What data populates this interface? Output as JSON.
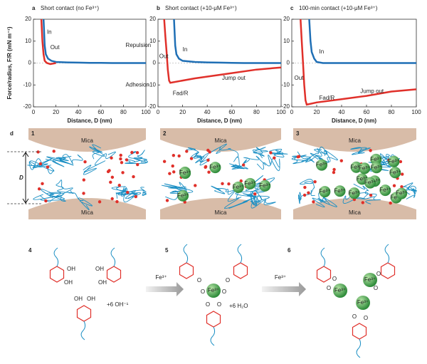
{
  "chart_data": [
    {
      "type": "line",
      "label": "a",
      "title": "Short contact (no Fe³⁺)",
      "x_label": "Distance, D (nm)",
      "y_label": "Force/radius, F/R (mN m⁻¹)",
      "xlim": [
        0,
        100
      ],
      "ylim": [
        -20,
        20
      ],
      "xticks": [
        0,
        20,
        40,
        60,
        80,
        100
      ],
      "yticks": [
        -20,
        -10,
        0,
        10,
        20
      ],
      "series": [
        {
          "name": "In",
          "color": "#1f6fb5",
          "x": [
            9,
            10,
            11,
            13,
            16,
            20,
            30,
            40,
            50,
            60,
            70,
            80,
            90,
            100
          ],
          "values": [
            20,
            8,
            4,
            2,
            1,
            0.5,
            0.3,
            0.2,
            0.1,
            0.1,
            0,
            0,
            0,
            0
          ]
        },
        {
          "name": "Out",
          "color": "#e0302a",
          "x": [
            7,
            8,
            9,
            10,
            12,
            15,
            20
          ],
          "values": [
            20,
            10,
            4,
            1,
            0,
            -0.5,
            0
          ]
        }
      ],
      "annotations": [
        {
          "text": "In",
          "color": "#1f6fb5"
        },
        {
          "text": "Out",
          "color": "#e0302a"
        },
        {
          "text": "Repulsion",
          "color": "#888888"
        },
        {
          "text": "Adhesion",
          "color": "#888888"
        }
      ]
    },
    {
      "type": "line",
      "label": "b",
      "title": "Short contact (+10-μM Fe³⁺)",
      "x_label": "Distance, D (nm)",
      "xlim": [
        0,
        100
      ],
      "ylim": [
        -20,
        20
      ],
      "xticks": [
        0,
        20,
        40,
        60,
        80,
        100
      ],
      "yticks": [
        -20,
        -10,
        0,
        10,
        20
      ],
      "series": [
        {
          "name": "In",
          "color": "#1f6fb5",
          "x": [
            13,
            14,
            15,
            17,
            20,
            30,
            40,
            50,
            60,
            70,
            80,
            90,
            100
          ],
          "values": [
            20,
            8,
            4,
            2,
            1,
            0.5,
            0.3,
            0.2,
            0.1,
            0,
            0,
            0,
            0
          ]
        },
        {
          "name": "Out",
          "color": "#e0302a",
          "x": [
            5,
            6,
            7,
            8,
            9,
            10,
            30,
            55,
            80,
            100
          ],
          "values": [
            20,
            12,
            5,
            -3,
            -8,
            -9,
            -7,
            -5,
            -3,
            -2
          ]
        }
      ],
      "annotations": [
        {
          "text": "Out",
          "color": "#e0302a"
        },
        {
          "text": "In",
          "color": "#1f6fb5"
        },
        {
          "text": "Fad/R",
          "color": "#222222"
        },
        {
          "text": "Jump out",
          "color": "#e0302a"
        }
      ]
    },
    {
      "type": "line",
      "label": "c",
      "title": "100-min contact (+10-μM Fe³⁺)",
      "x_label": "Distance, D (nm)",
      "xlim": [
        0,
        100
      ],
      "ylim": [
        -20,
        20
      ],
      "xticks": [
        0,
        20,
        40,
        60,
        80,
        100
      ],
      "yticks": [
        -20,
        -10,
        0,
        10,
        20
      ],
      "series": [
        {
          "name": "In",
          "color": "#1f6fb5",
          "x": [
            14,
            15,
            16,
            18,
            20,
            25,
            30,
            40,
            50,
            60,
            70,
            80,
            90,
            100
          ],
          "values": [
            20,
            10,
            5,
            2,
            0.5,
            0,
            0,
            0,
            0,
            0,
            0,
            0,
            0,
            0
          ]
        },
        {
          "name": "Out",
          "color": "#e0302a",
          "x": [
            7,
            8,
            9,
            10,
            11,
            12,
            20,
            40,
            60,
            80,
            100
          ],
          "values": [
            20,
            10,
            0,
            -10,
            -17,
            -19,
            -18,
            -16.5,
            -15,
            -13,
            -12
          ]
        }
      ],
      "annotations": [
        {
          "text": "Out",
          "color": "#e0302a"
        },
        {
          "text": "In",
          "color": "#1f6fb5"
        },
        {
          "text": "Fad/R",
          "color": "#222222"
        },
        {
          "text": "Jump out",
          "color": "#e0302a"
        }
      ]
    }
  ],
  "diagram": {
    "label": "d",
    "panels": [
      "1",
      "2",
      "3"
    ],
    "mica": "Mica",
    "distance": "D",
    "ion": "Fe³⁺"
  },
  "chemistry": {
    "panels": [
      "4",
      "5",
      "6"
    ],
    "reagent": "Fe³⁺",
    "oh": "OH",
    "o": "O",
    "plus_oh": "+6 OH⁻¹",
    "plus_h2o": "+6 H₂O"
  }
}
